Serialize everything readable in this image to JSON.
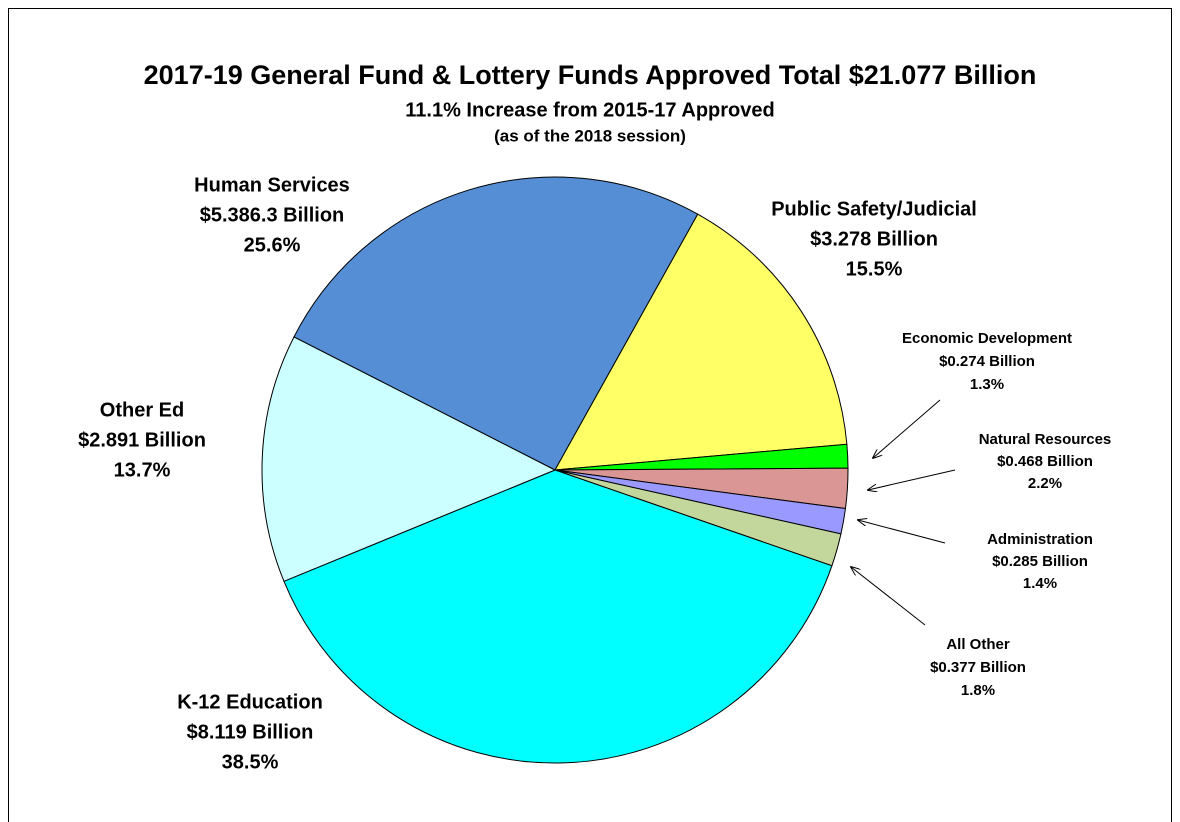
{
  "chart_data": {
    "type": "pie",
    "title": "2017-19 General Fund & Lottery Funds Approved Total $21.077 Billion",
    "subtitle": "11.1% Increase from 2015-17 Approved",
    "note": "(as of the 2018 session)",
    "categories": [
      "Human Services",
      "Public Safety/Judicial",
      "Economic Development",
      "Natural Resources",
      "Administration",
      "All Other",
      "K-12 Education",
      "Other Ed"
    ],
    "amount_labels": [
      "$5.386.3 Billion",
      "$3.278 Billion",
      "$0.274 Billion",
      "$0.468 Billion",
      "$0.285 Billion",
      "$0.377 Billion",
      "$8.119 Billion",
      "$2.891 Billion"
    ],
    "values": [
      25.6,
      15.5,
      1.3,
      2.2,
      1.4,
      1.8,
      38.5,
      13.7
    ],
    "value_labels": [
      "25.6%",
      "15.5%",
      "1.3%",
      "2.2%",
      "1.4%",
      "1.8%",
      "38.5%",
      "13.7%"
    ],
    "colors": [
      "#558ed5",
      "#ffff66",
      "#00ff00",
      "#d99694",
      "#9999ff",
      "#c3d69b",
      "#00ffff",
      "#ccffff"
    ]
  }
}
